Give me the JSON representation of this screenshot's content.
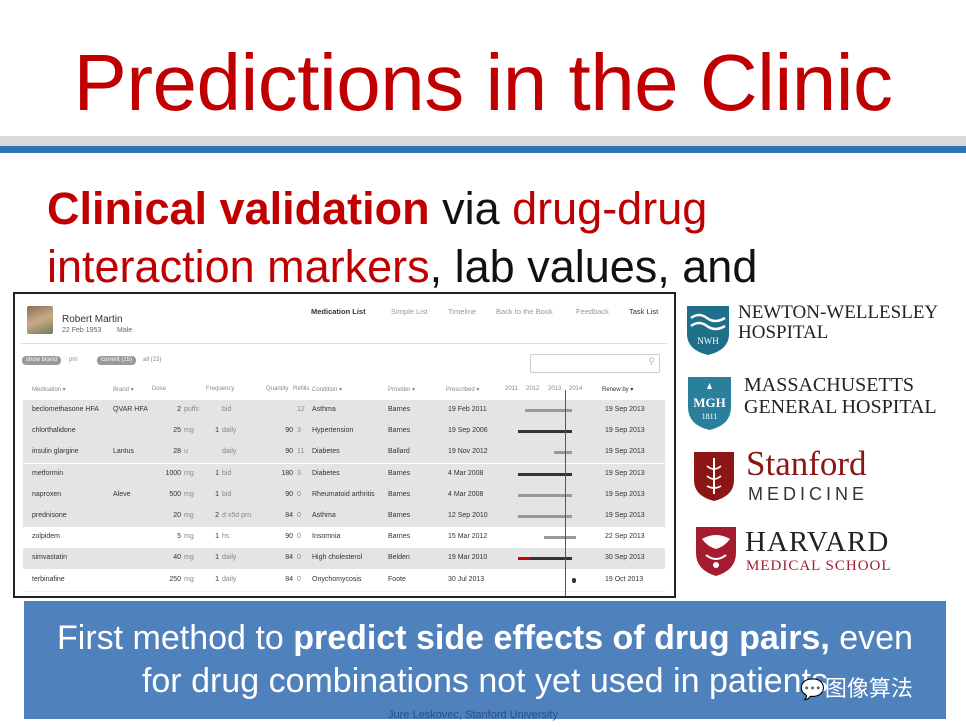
{
  "title": "Predictions in the Clinic",
  "subtitle": {
    "part1": "Clinical validation",
    "part2": " via ",
    "part3": "drug-drug",
    "part4": "interaction markers",
    "part5": ", lab values, and"
  },
  "ehr": {
    "patient_name": "Robert Martin",
    "patient_dob": "22 Feb 1953",
    "patient_sex": "Male",
    "nav": [
      "Medication List",
      "Simple List",
      "Timeline",
      "Back to the Book",
      "Feedback",
      "Task List"
    ],
    "filters": {
      "show_brand": "show brand",
      "prn": "prn",
      "current": "current (15)",
      "all": "all (23)"
    },
    "search_icon": "search-icon",
    "columns": [
      "Medication ▾",
      "Brand ▾",
      "Dose",
      "Frequency",
      "Quantity",
      "Refills",
      "Condition ▾",
      "Provider ▾",
      "Prescribed ▾",
      "2011",
      "2012",
      "2013",
      "2014",
      "Renew by ▾"
    ],
    "rows": [
      {
        "med": "beclomethasone HFA",
        "brand": "QVAR HFA",
        "dose_n": "2",
        "dose_u": "puffs",
        "freq_n": "",
        "freq": "bid",
        "qty": "",
        "refills": "12",
        "cond": "Asthma",
        "prov": "Barnes",
        "presc": "19 Feb 2011",
        "renew": "19 Sep 2013",
        "shade": true,
        "bar_start": 0.12,
        "bar_end": 0.98,
        "bar_color": "#999999",
        "red": 0
      },
      {
        "med": "chlorthalidone",
        "brand": "",
        "dose_n": "25",
        "dose_u": "mg",
        "freq_n": "1",
        "freq": "daily",
        "qty": "90",
        "refills": "3",
        "cond": "Hypertension",
        "prov": "Barnes",
        "presc": "19 Sep 2006",
        "renew": "19 Sep 2013",
        "shade": true,
        "bar_start": 0.0,
        "bar_end": 0.98,
        "bar_color": "#333333",
        "red": 0
      },
      {
        "med": "insulin glargine",
        "brand": "Lantus",
        "dose_n": "28",
        "dose_u": "u",
        "freq_n": "",
        "freq": "daily",
        "qty": "90",
        "refills": "11",
        "cond": "Diabetes",
        "prov": "Ballard",
        "presc": "19 Nov 2012",
        "renew": "19 Sep 2013",
        "shade": true,
        "bar_start": 0.66,
        "bar_end": 0.98,
        "bar_color": "#999999",
        "red": 0
      },
      {
        "med": "metformin",
        "brand": "",
        "dose_n": "1000",
        "dose_u": "mg",
        "freq_n": "1",
        "freq": "bid",
        "qty": "180",
        "refills": "3",
        "cond": "Diabetes",
        "prov": "Barnes",
        "presc": "4 Mar 2008",
        "renew": "19 Sep 2013",
        "shade": true,
        "bar_start": 0.0,
        "bar_end": 0.98,
        "bar_color": "#333333",
        "red": 0
      },
      {
        "med": "naproxen",
        "brand": "Aleve",
        "dose_n": "500",
        "dose_u": "mg",
        "freq_n": "1",
        "freq": "bid",
        "qty": "90",
        "refills": "0",
        "cond": "Rheumatoid arthritis",
        "prov": "Barnes",
        "presc": "4 Mar 2008",
        "renew": "19 Sep 2013",
        "shade": true,
        "bar_start": 0.0,
        "bar_end": 0.98,
        "bar_color": "#999999",
        "red": 0
      },
      {
        "med": "prednisone",
        "brand": "",
        "dose_n": "20",
        "dose_u": "mg",
        "freq_n": "2",
        "freq": "d x5d prn",
        "qty": "84",
        "refills": "0",
        "cond": "Asthma",
        "prov": "Barnes",
        "presc": "12 Sep 2010",
        "renew": "19 Sep 2013",
        "shade": true,
        "bar_start": 0.0,
        "bar_end": 0.98,
        "bar_color": "#999999",
        "red": 0
      },
      {
        "med": "zolpidem",
        "brand": "",
        "dose_n": "5",
        "dose_u": "mg",
        "freq_n": "1",
        "freq": "hs",
        "qty": "90",
        "refills": "0",
        "cond": "Insomnia",
        "prov": "Barnes",
        "presc": "15 Mar 2012",
        "renew": "22 Sep 2013",
        "shade": false,
        "bar_start": 0.48,
        "bar_end": 1.05,
        "bar_color": "#999999",
        "red": 0
      },
      {
        "med": "simvastatin",
        "brand": "",
        "dose_n": "40",
        "dose_u": "mg",
        "freq_n": "1",
        "freq": "daily",
        "qty": "84",
        "refills": "0",
        "cond": "High cholesterol",
        "prov": "Belden",
        "presc": "19 Mar 2010",
        "renew": "30 Sep 2013",
        "shade": true,
        "bar_start": 0.0,
        "bar_end": 0.98,
        "bar_color": "#333333",
        "red": 0.22
      },
      {
        "med": "terbinafine",
        "brand": "",
        "dose_n": "250",
        "dose_u": "mg",
        "freq_n": "1",
        "freq": "daily",
        "qty": "84",
        "refills": "0",
        "cond": "Onychomycosis",
        "prov": "Foote",
        "presc": "30 Jul 2013",
        "renew": "19 Oct 2013",
        "shade": false,
        "bar_start": 0.98,
        "bar_end": 1.02,
        "bar_color": "#333333",
        "red": 0
      }
    ]
  },
  "logos": {
    "nwh_line1": "NEWTON-WELLESLEY",
    "nwh_line2": "HOSPITAL",
    "nwh_badge": "NWH",
    "mgh_line1": "MASSACHUSETTS",
    "mgh_line2": "GENERAL HOSPITAL",
    "mgh_badge": "MGH",
    "mgh_year": "1811",
    "stanford_line1": "Stanford",
    "stanford_line2": "MEDICINE",
    "harvard_line1": "HARVARD",
    "harvard_line2": "MEDICAL SCHOOL"
  },
  "footer": {
    "line1_pre": "First method to ",
    "line1_bold": "predict side effects of drug pairs,",
    "line1_post": " even",
    "line2": "for drug combinations not yet used in patients"
  },
  "author": "Jure Leskovec, Stanford University",
  "watermark": "图像算法",
  "colors": {
    "title_red": "#c00000",
    "accent_blue": "#2e74b5",
    "box_blue": "#4f81bd"
  }
}
